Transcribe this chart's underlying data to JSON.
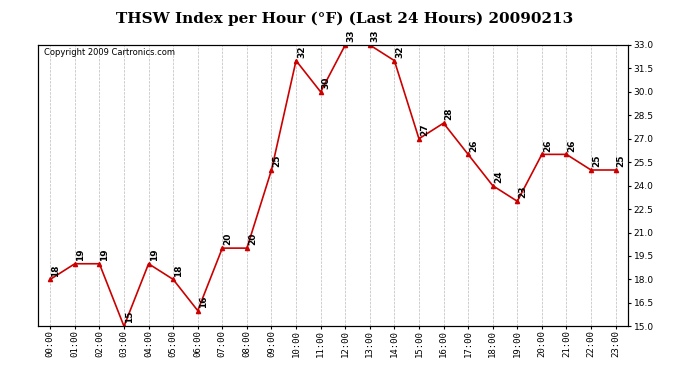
{
  "title": "THSW Index per Hour (°F) (Last 24 Hours) 20090213",
  "copyright": "Copyright 2009 Cartronics.com",
  "hours": [
    "00:00",
    "01:00",
    "02:00",
    "03:00",
    "04:00",
    "05:00",
    "06:00",
    "07:00",
    "08:00",
    "09:00",
    "10:00",
    "11:00",
    "12:00",
    "13:00",
    "14:00",
    "15:00",
    "16:00",
    "17:00",
    "18:00",
    "19:00",
    "20:00",
    "21:00",
    "22:00",
    "23:00"
  ],
  "values": [
    18,
    19,
    19,
    15,
    19,
    18,
    16,
    20,
    20,
    25,
    32,
    30,
    33,
    33,
    32,
    27,
    28,
    26,
    24,
    23,
    26,
    26,
    25,
    25
  ],
  "ylim": [
    15.0,
    33.0
  ],
  "yticks": [
    15.0,
    16.5,
    18.0,
    19.5,
    21.0,
    22.5,
    24.0,
    25.5,
    27.0,
    28.5,
    30.0,
    31.5,
    33.0
  ],
  "line_color": "#cc0000",
  "marker": "^",
  "marker_size": 3,
  "grid_color": "#bbbbbb",
  "background_color": "#ffffff",
  "title_fontsize": 11,
  "label_fontsize": 6.5,
  "annotation_fontsize": 6.5,
  "copyright_fontsize": 6
}
